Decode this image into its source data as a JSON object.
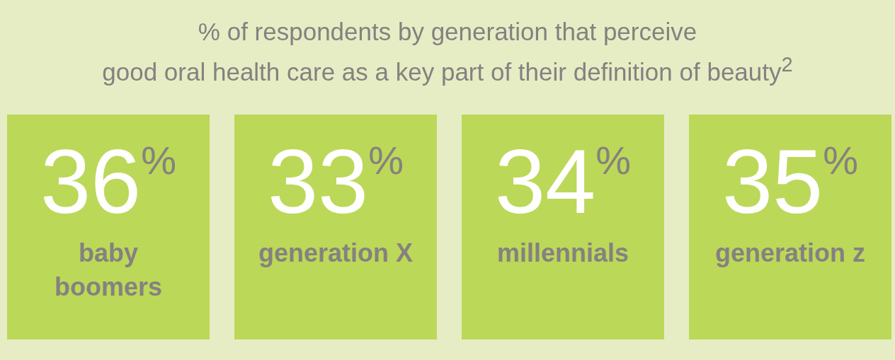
{
  "chart_data": {
    "type": "other",
    "title": "% of respondents by generation that perceive\ngood oral health care as a key part of their definition of beauty$^{2}$",
    "categories": [
      "baby boomers",
      "generation X",
      "millennials",
      "generation z"
    ],
    "values": [
      36,
      33,
      34,
      35
    ],
    "value_labels": [
      "36%",
      "33%",
      "34%",
      "35%"
    ],
    "color": "#bcd858"
  }
}
